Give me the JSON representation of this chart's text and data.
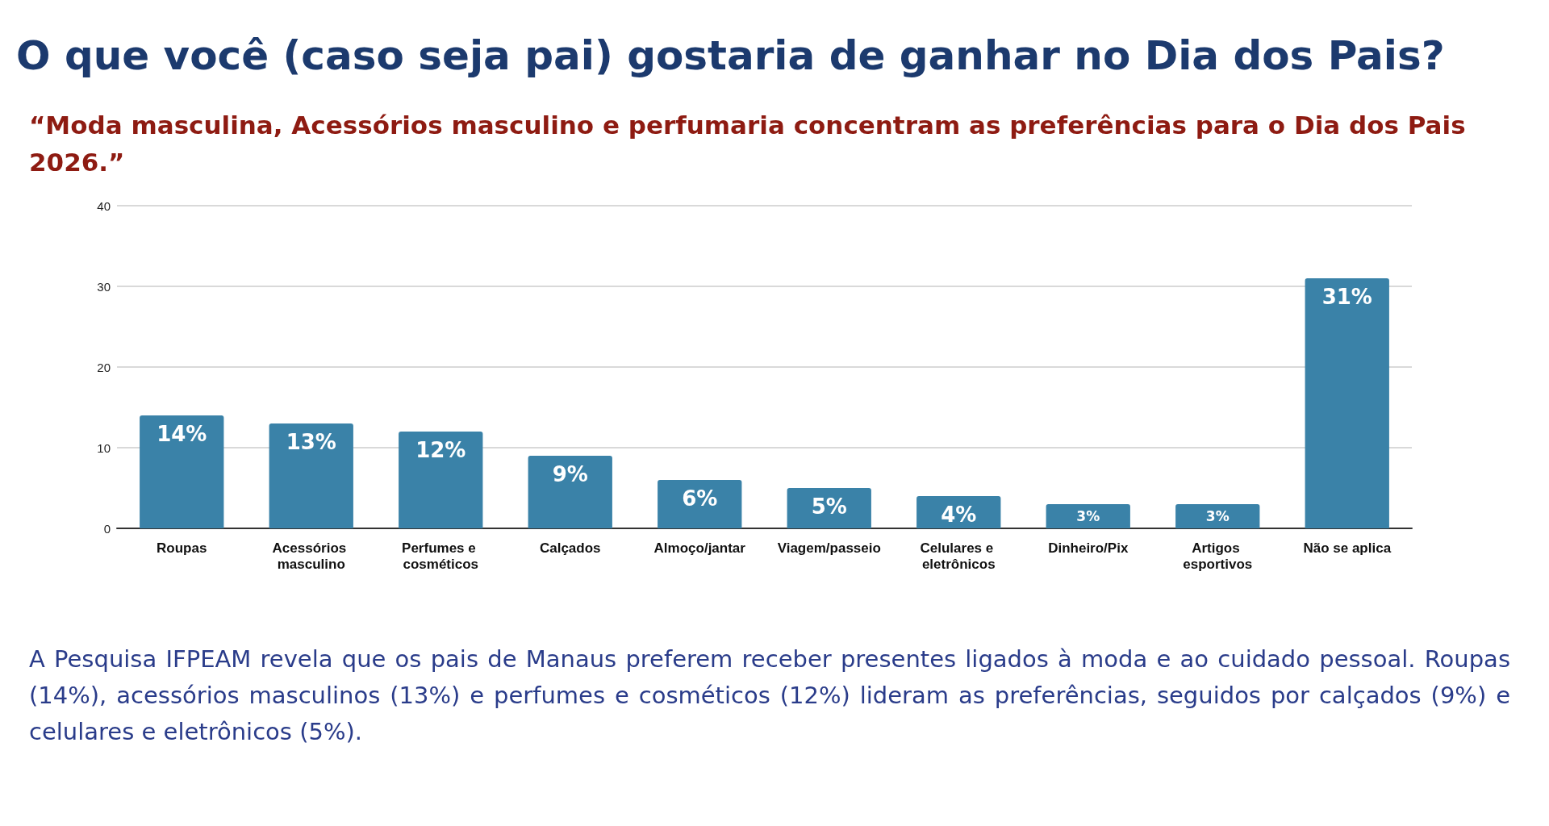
{
  "chart_data": {
    "type": "bar",
    "title": "O que você (caso seja pai) gostaria de ganhar no Dia dos Pais?",
    "subtitle": "“Moda masculina, Acessórios masculino e perfumaria concentram as preferências para o Dia dos Pais 2026.”",
    "categories": [
      "Roupas",
      "Acessórios masculino",
      "Perfumes e cosméticos",
      "Calçados",
      "Almoço/jantar",
      "Viagem/passeio",
      "Celulares e eletrônicos",
      "Dinheiro/Pix",
      "Artigos esportivos",
      "Não se aplica"
    ],
    "values": [
      14,
      13,
      12,
      9,
      6,
      5,
      4,
      3,
      3,
      31
    ],
    "value_labels": [
      "14%",
      "13%",
      "12%",
      "9%",
      "6%",
      "5%",
      "4%",
      "3%",
      "3%",
      "31%"
    ],
    "color": "#3a82a8",
    "ylim": [
      0,
      40
    ],
    "yticks": [
      0,
      10,
      20,
      30,
      40
    ],
    "grid": "y",
    "annotations": [
      "A Pesquisa IFPEAM revela que os pais de Manaus preferem receber presentes ligados à moda e ao cuidado pessoal. Roupas (14%), acessórios masculinos (13%) e perfumes e cosméticos (12%) lideram as preferências, seguidos por calçados (9%) e celulares e eletrônicos (5%)."
    ]
  }
}
